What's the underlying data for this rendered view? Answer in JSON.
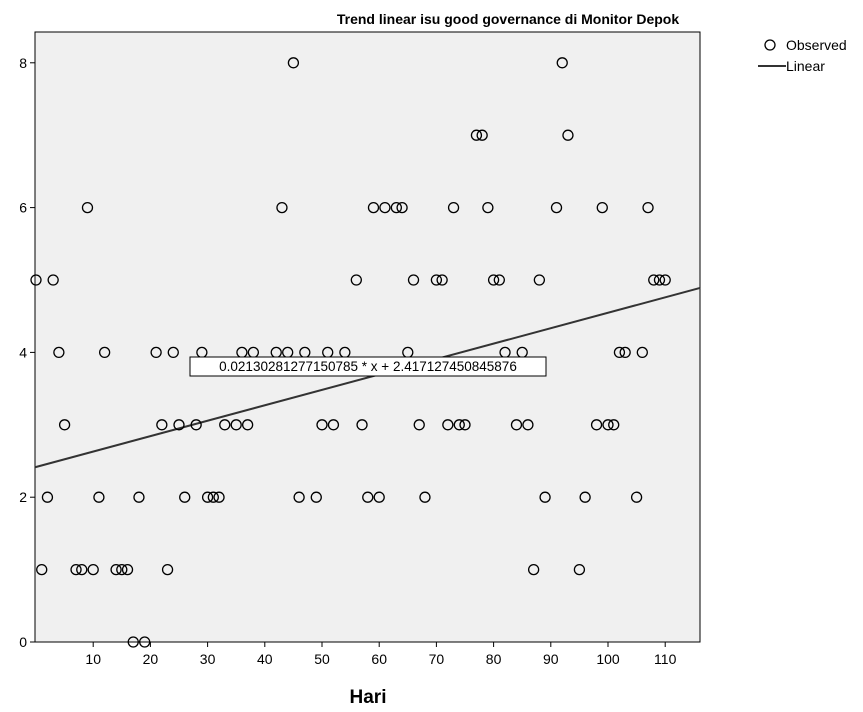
{
  "chart_data": {
    "type": "scatter",
    "title": "Trend linear isu good governance di Monitor Depok",
    "xlabel": "Hari",
    "ylabel": "",
    "xlim": [
      0,
      118
    ],
    "ylim": [
      0,
      8.4
    ],
    "xticks": [
      10,
      20,
      30,
      40,
      50,
      60,
      70,
      80,
      90,
      100,
      110
    ],
    "yticks": [
      0,
      2,
      4,
      6,
      8
    ],
    "grid": false,
    "legend_position": "top-right",
    "legend": [
      "Observed",
      "Linear"
    ],
    "colors": {
      "plot_background": "#f0f0f0",
      "marker": "#000000",
      "line": "#333333"
    },
    "fit": {
      "slope": 0.021302812771507855,
      "intercept": 2.417127450845876,
      "label": "0.02130281277150785 * x + 2.417127450845876"
    },
    "points": [
      [
        0,
        5
      ],
      [
        1,
        1
      ],
      [
        2,
        2
      ],
      [
        3,
        5
      ],
      [
        4,
        4
      ],
      [
        5,
        3
      ],
      [
        7,
        1
      ],
      [
        8,
        1
      ],
      [
        9,
        6
      ],
      [
        10,
        1
      ],
      [
        11,
        2
      ],
      [
        12,
        4
      ],
      [
        14,
        1
      ],
      [
        15,
        1
      ],
      [
        16,
        1
      ],
      [
        17,
        0
      ],
      [
        18,
        2
      ],
      [
        19,
        0
      ],
      [
        21,
        4
      ],
      [
        22,
        3
      ],
      [
        23,
        1
      ],
      [
        24,
        4
      ],
      [
        25,
        3
      ],
      [
        26,
        2
      ],
      [
        28,
        3
      ],
      [
        29,
        4
      ],
      [
        30,
        2
      ],
      [
        31,
        2
      ],
      [
        32,
        2
      ],
      [
        33,
        3
      ],
      [
        35,
        3
      ],
      [
        36,
        4
      ],
      [
        37,
        3
      ],
      [
        38,
        4
      ],
      [
        42,
        4
      ],
      [
        43,
        6
      ],
      [
        44,
        4
      ],
      [
        45,
        8
      ],
      [
        46,
        2
      ],
      [
        47,
        4
      ],
      [
        49,
        2
      ],
      [
        50,
        3
      ],
      [
        51,
        4
      ],
      [
        52,
        3
      ],
      [
        54,
        4
      ],
      [
        56,
        5
      ],
      [
        57,
        3
      ],
      [
        58,
        2
      ],
      [
        59,
        6
      ],
      [
        60,
        2
      ],
      [
        61,
        6
      ],
      [
        63,
        6
      ],
      [
        64,
        6
      ],
      [
        65,
        4
      ],
      [
        66,
        5
      ],
      [
        67,
        3
      ],
      [
        68,
        2
      ],
      [
        70,
        5
      ],
      [
        71,
        5
      ],
      [
        72,
        3
      ],
      [
        73,
        6
      ],
      [
        74,
        3
      ],
      [
        75,
        3
      ],
      [
        77,
        7
      ],
      [
        78,
        7
      ],
      [
        79,
        6
      ],
      [
        80,
        5
      ],
      [
        81,
        5
      ],
      [
        82,
        4
      ],
      [
        84,
        3
      ],
      [
        85,
        4
      ],
      [
        86,
        3
      ],
      [
        87,
        1
      ],
      [
        88,
        5
      ],
      [
        89,
        2
      ],
      [
        91,
        6
      ],
      [
        92,
        8
      ],
      [
        93,
        7
      ],
      [
        95,
        1
      ],
      [
        96,
        2
      ],
      [
        98,
        3
      ],
      [
        99,
        6
      ],
      [
        100,
        3
      ],
      [
        101,
        3
      ],
      [
        102,
        4
      ],
      [
        103,
        4
      ],
      [
        105,
        2
      ],
      [
        106,
        4
      ],
      [
        107,
        6
      ],
      [
        108,
        5
      ],
      [
        109,
        5
      ],
      [
        110,
        5
      ]
    ]
  }
}
